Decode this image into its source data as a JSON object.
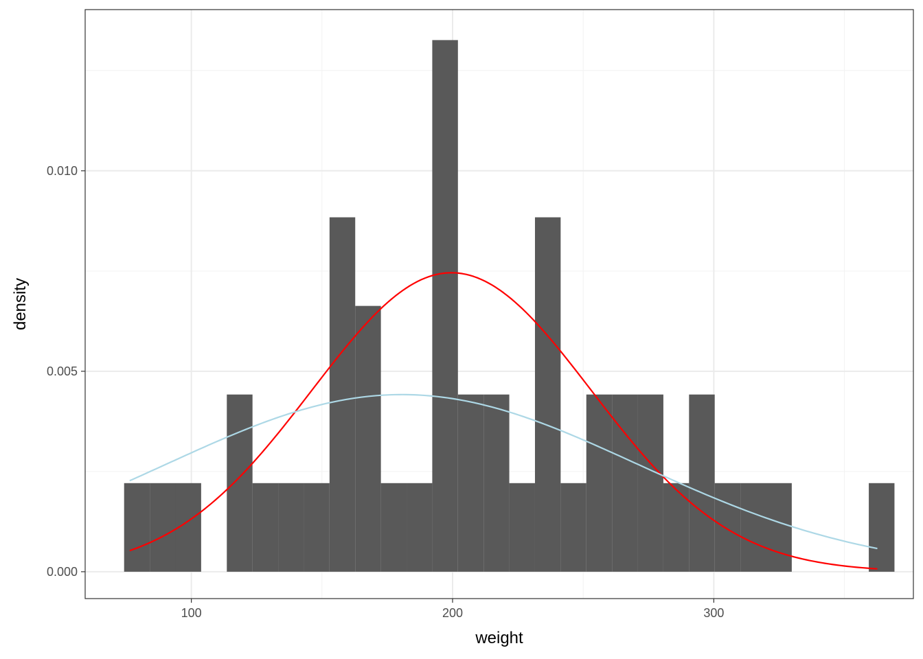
{
  "chart_data": {
    "type": "histogram",
    "xlabel": "weight",
    "ylabel": "density",
    "xlim": [
      59.35,
      376.4
    ],
    "ylim": [
      -0.00067,
      0.01402
    ],
    "x_ticks": [
      100,
      200,
      300
    ],
    "x_tick_labels": [
      "100",
      "200",
      "300"
    ],
    "y_ticks": [
      0.0,
      0.005,
      0.01
    ],
    "y_tick_labels": [
      "0.000",
      "0.005",
      "0.010"
    ],
    "grid": true,
    "bin_width": 9.83,
    "bins": [
      {
        "x0": 74.26,
        "x1": 84.09,
        "density": 0.00221
      },
      {
        "x0": 84.09,
        "x1": 93.92,
        "density": 0.00221
      },
      {
        "x0": 93.92,
        "x1": 103.75,
        "density": 0.00221
      },
      {
        "x0": 103.75,
        "x1": 113.58,
        "density": 0.0
      },
      {
        "x0": 113.58,
        "x1": 123.41,
        "density": 0.00442
      },
      {
        "x0": 123.41,
        "x1": 133.24,
        "density": 0.00221
      },
      {
        "x0": 133.24,
        "x1": 143.07,
        "density": 0.00221
      },
      {
        "x0": 143.07,
        "x1": 152.9,
        "density": 0.00221
      },
      {
        "x0": 152.9,
        "x1": 162.73,
        "density": 0.00884
      },
      {
        "x0": 162.73,
        "x1": 172.56,
        "density": 0.00663
      },
      {
        "x0": 172.56,
        "x1": 182.39,
        "density": 0.00221
      },
      {
        "x0": 182.39,
        "x1": 192.22,
        "density": 0.00221
      },
      {
        "x0": 192.22,
        "x1": 202.05,
        "density": 0.01326
      },
      {
        "x0": 202.05,
        "x1": 211.88,
        "density": 0.00442
      },
      {
        "x0": 211.88,
        "x1": 221.71,
        "density": 0.00442
      },
      {
        "x0": 221.71,
        "x1": 231.54,
        "density": 0.00221
      },
      {
        "x0": 231.54,
        "x1": 241.37,
        "density": 0.00884
      },
      {
        "x0": 241.37,
        "x1": 251.2,
        "density": 0.00221
      },
      {
        "x0": 251.2,
        "x1": 261.03,
        "density": 0.00442
      },
      {
        "x0": 261.03,
        "x1": 270.86,
        "density": 0.00442
      },
      {
        "x0": 270.86,
        "x1": 280.69,
        "density": 0.00442
      },
      {
        "x0": 280.69,
        "x1": 290.52,
        "density": 0.00221
      },
      {
        "x0": 290.52,
        "x1": 300.35,
        "density": 0.00442
      },
      {
        "x0": 300.35,
        "x1": 310.18,
        "density": 0.00221
      },
      {
        "x0": 310.18,
        "x1": 320.01,
        "density": 0.00221
      },
      {
        "x0": 320.01,
        "x1": 329.84,
        "density": 0.00221
      },
      {
        "x0": 329.84,
        "x1": 339.67,
        "density": 0.0
      },
      {
        "x0": 339.67,
        "x1": 349.5,
        "density": 0.0
      },
      {
        "x0": 349.5,
        "x1": 359.33,
        "density": 0.0
      },
      {
        "x0": 359.33,
        "x1": 369.16,
        "density": 0.00221
      }
    ],
    "curves": [
      {
        "color": "#ff0000",
        "distribution": "normal",
        "mean": 199.6,
        "sd": 53.5,
        "x_range": [
          76.4,
          362.6
        ]
      },
      {
        "color": "#add8e6",
        "distribution": "normal",
        "mean": 180.6,
        "sd": 90.3,
        "x_range": [
          76.4,
          362.6
        ]
      }
    ],
    "bar_color": "#595959"
  }
}
